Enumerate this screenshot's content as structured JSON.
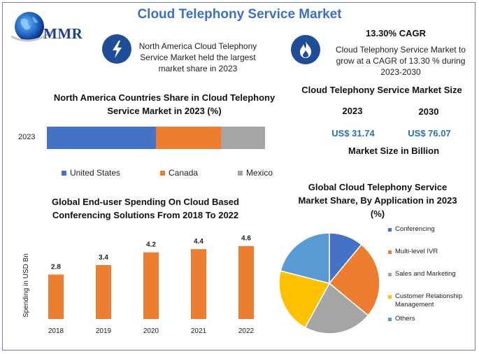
{
  "title": "Cloud Telephony Service Market",
  "logo": {
    "text": "MMR"
  },
  "info_left": {
    "icon": "lightning-icon",
    "text": "North America Cloud Telephony Service Market held the largest market share in 2023"
  },
  "info_right": {
    "icon": "flame-icon",
    "heading": "13.30% CAGR",
    "text": "Cloud Telephony Service Market to grow at a CAGR of 13.30 % during 2023-2030"
  },
  "market_size": {
    "title": "Cloud Telephony Service Market Size",
    "years": [
      "2023",
      "2030"
    ],
    "values": [
      "US$ 31.74",
      "US$ 76.07"
    ],
    "caption": "Market Size in Billion"
  },
  "colors": {
    "blue": "#4472c4",
    "orange": "#ed7d31",
    "gray": "#a5a5a5",
    "yellow": "#ffc000",
    "lightblue": "#5b9bd5",
    "title_blue": "#3d6fc6",
    "value_blue": "#2f6db5",
    "icon_bg": "#1f4e96"
  },
  "chart_data": [
    {
      "type": "bar",
      "orientation": "horizontal-stacked",
      "title": "North America Countries Share in Cloud Telephony Service  Market in 2023 (%)",
      "categories": [
        "2023"
      ],
      "series": [
        {
          "name": "United States",
          "values": [
            50
          ],
          "color": "#4472c4"
        },
        {
          "name": "Canada",
          "values": [
            30
          ],
          "color": "#ed7d31"
        },
        {
          "name": "Mexico",
          "values": [
            20
          ],
          "color": "#a5a5a5"
        }
      ],
      "legend": "bottom"
    },
    {
      "type": "bar",
      "title": "Global End-user Spending On Cloud Based Conferencing Solutions From 2018 To 2022",
      "categories": [
        "2018",
        "2019",
        "2020",
        "2021",
        "2022"
      ],
      "values": [
        2.8,
        3.4,
        4.2,
        4.4,
        4.6
      ],
      "labels": [
        "2.8",
        "3.4",
        "4.2",
        "4.4",
        "4.6"
      ],
      "ylabel": "Spending in USD Bn",
      "ylim": [
        0,
        5.2
      ],
      "color": "#ed7d31"
    },
    {
      "type": "pie",
      "title": "Global Cloud Telephony Service Market Share, By Application in 2023 (%)",
      "series": [
        {
          "name": "Conferencing",
          "value": 11,
          "color": "#4472c4"
        },
        {
          "name": "Multi-level IVR",
          "value": 25,
          "color": "#ed7d31"
        },
        {
          "name": "Sales and Marketing",
          "value": 22,
          "color": "#a5a5a5"
        },
        {
          "name": "Customer Relationship Management",
          "value": 21,
          "color": "#ffc000"
        },
        {
          "name": "Others",
          "value": 21,
          "color": "#5b9bd5"
        }
      ],
      "legend": "right"
    }
  ]
}
